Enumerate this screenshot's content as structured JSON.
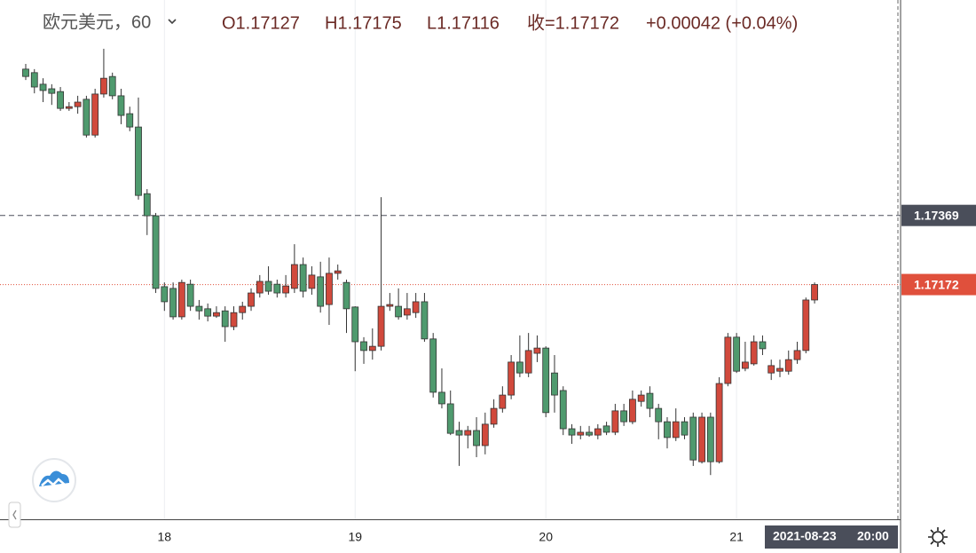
{
  "chart_data": {
    "type": "candlestick",
    "header": {
      "symbol": "欧元美元，60",
      "open": "O1.17127",
      "high": "H1.17175",
      "low": "L1.17116",
      "close": "收=1.17172",
      "change": "+0.00042 (+0.04%)"
    },
    "up_color": "#d1493c",
    "down_color": "#4f9a6e",
    "ylim": [
      1.16503,
      1.17983
    ],
    "grid": true,
    "crosshair_label": "2021-08-23",
    "crosshair_time": "20:00",
    "price_lines": [
      {
        "value": 1.17369,
        "color": "#4a4e5a",
        "style": "dashed"
      },
      {
        "value": 1.17172,
        "color": "#e0503c",
        "style": "dotted"
      }
    ],
    "categories": [
      null,
      null,
      null,
      null,
      null,
      null,
      null,
      null,
      null,
      null,
      null,
      null,
      null,
      null,
      null,
      null,
      "18",
      null,
      null,
      null,
      null,
      null,
      null,
      null,
      null,
      null,
      null,
      null,
      null,
      null,
      null,
      null,
      null,
      null,
      null,
      null,
      null,
      null,
      "19",
      null,
      null,
      null,
      null,
      null,
      null,
      null,
      null,
      null,
      null,
      null,
      null,
      null,
      null,
      null,
      null,
      null,
      null,
      null,
      null,
      null,
      "20",
      null,
      null,
      null,
      null,
      null,
      null,
      null,
      null,
      null,
      null,
      null,
      null,
      null,
      null,
      null,
      null,
      null,
      null,
      null,
      null,
      null,
      "21",
      null,
      null,
      null,
      null,
      null,
      null,
      null,
      null,
      null
    ],
    "ohlc": [
      [
        1.17786,
        1.17801,
        1.17755,
        1.17765
      ],
      [
        1.17776,
        1.17786,
        1.17717,
        1.17735
      ],
      [
        1.17743,
        1.1776,
        1.17692,
        1.17725
      ],
      [
        1.1773,
        1.17743,
        1.17684,
        1.17717
      ],
      [
        1.17722,
        1.17735,
        1.17667,
        1.17674
      ],
      [
        1.17674,
        1.17692,
        1.17667,
        1.17679
      ],
      [
        1.17679,
        1.1771,
        1.17659,
        1.17692
      ],
      [
        1.177,
        1.1771,
        1.17591,
        1.17598
      ],
      [
        1.17598,
        1.1773,
        1.17591,
        1.17715
      ],
      [
        1.17715,
        1.17844,
        1.17705,
        1.1776
      ],
      [
        1.17765,
        1.17776,
        1.177,
        1.1771
      ],
      [
        1.1771,
        1.1773,
        1.17629,
        1.17654
      ],
      [
        1.17659,
        1.17679,
        1.17609,
        1.17621
      ],
      [
        1.17621,
        1.17705,
        1.17414,
        1.17426
      ],
      [
        1.17431,
        1.17444,
        1.17313,
        1.17368
      ],
      [
        1.17368,
        1.17376,
        1.17148,
        1.17161
      ],
      [
        1.17166,
        1.17178,
        1.17097,
        1.17123
      ],
      [
        1.17161,
        1.17178,
        1.17072,
        1.1708
      ],
      [
        1.1708,
        1.17186,
        1.17072,
        1.17178
      ],
      [
        1.17173,
        1.17186,
        1.17097,
        1.1711
      ],
      [
        1.1711,
        1.17128,
        1.17072,
        1.17097
      ],
      [
        1.17103,
        1.17118,
        1.17067,
        1.17082
      ],
      [
        1.17082,
        1.1711,
        1.17077,
        1.17092
      ],
      [
        1.17097,
        1.1711,
        1.17009,
        1.17052
      ],
      [
        1.17052,
        1.1711,
        1.17042,
        1.17092
      ],
      [
        1.17092,
        1.17123,
        1.17072,
        1.1711
      ],
      [
        1.1711,
        1.17161,
        1.17097,
        1.17148
      ],
      [
        1.17148,
        1.17199,
        1.17135,
        1.17181
      ],
      [
        1.17181,
        1.17224,
        1.17143,
        1.17153
      ],
      [
        1.17173,
        1.17186,
        1.17135,
        1.17148
      ],
      [
        1.17148,
        1.17199,
        1.17135,
        1.17168
      ],
      [
        1.17161,
        1.17287,
        1.17148,
        1.17229
      ],
      [
        1.17229,
        1.17249,
        1.17135,
        1.17153
      ],
      [
        1.17161,
        1.17224,
        1.17143,
        1.17199
      ],
      [
        1.17194,
        1.17237,
        1.17092,
        1.1711
      ],
      [
        1.17115,
        1.17249,
        1.17057,
        1.17204
      ],
      [
        1.17204,
        1.17229,
        1.17186,
        1.17211
      ],
      [
        1.17178,
        1.17186,
        1.17034,
        1.17103
      ],
      [
        1.17108,
        1.1711,
        1.16925,
        1.17009
      ],
      [
        1.17009,
        1.17022,
        1.16946,
        1.16984
      ],
      [
        1.16984,
        1.17047,
        1.16958,
        1.16996
      ],
      [
        1.16996,
        1.17421,
        1.16984,
        1.1711
      ],
      [
        1.1711,
        1.17148,
        1.17097,
        1.17115
      ],
      [
        1.1711,
        1.17161,
        1.17072,
        1.1708
      ],
      [
        1.17085,
        1.17148,
        1.17072,
        1.17103
      ],
      [
        1.17092,
        1.17148,
        1.17077,
        1.17123
      ],
      [
        1.17123,
        1.17148,
        1.17009,
        1.17017
      ],
      [
        1.17017,
        1.17034,
        1.1685,
        1.16865
      ],
      [
        1.16865,
        1.16933,
        1.16819,
        1.16832
      ],
      [
        1.16832,
        1.1687,
        1.16743,
        1.16748
      ],
      [
        1.16756,
        1.16781,
        1.16655,
        1.16743
      ],
      [
        1.16743,
        1.16769,
        1.16705,
        1.16756
      ],
      [
        1.16756,
        1.16794,
        1.1668,
        1.16713
      ],
      [
        1.16713,
        1.16807,
        1.16688,
        1.16774
      ],
      [
        1.16774,
        1.16845,
        1.16764,
        1.16819
      ],
      [
        1.16819,
        1.16882,
        1.16807,
        1.16857
      ],
      [
        1.16857,
        1.16971,
        1.16845,
        1.16951
      ],
      [
        1.16951,
        1.17027,
        1.16908,
        1.1692
      ],
      [
        1.1692,
        1.17034,
        1.16908,
        1.16984
      ],
      [
        1.16976,
        1.17027,
        1.16951,
        1.16991
      ],
      [
        1.16991,
        1.16996,
        1.16794,
        1.16807
      ],
      [
        1.1692,
        1.16971,
        1.16807,
        1.16857
      ],
      [
        1.1687,
        1.16882,
        1.16743,
        1.16761
      ],
      [
        1.16761,
        1.16774,
        1.16718,
        1.16743
      ],
      [
        1.16743,
        1.16769,
        1.16731,
        1.16751
      ],
      [
        1.16751,
        1.16769,
        1.16738,
        1.16743
      ],
      [
        1.16743,
        1.16774,
        1.16731,
        1.16761
      ],
      [
        1.16769,
        1.16781,
        1.16743,
        1.16751
      ],
      [
        1.16751,
        1.16832,
        1.16743,
        1.16812
      ],
      [
        1.16812,
        1.16832,
        1.16769,
        1.16781
      ],
      [
        1.16781,
        1.1687,
        1.16774,
        1.16845
      ],
      [
        1.16839,
        1.1687,
        1.16824,
        1.16857
      ],
      [
        1.16862,
        1.16882,
        1.16794,
        1.16819
      ],
      [
        1.16819,
        1.16832,
        1.16731,
        1.16781
      ],
      [
        1.16781,
        1.16794,
        1.16705,
        1.16736
      ],
      [
        1.16736,
        1.16819,
        1.16726,
        1.16781
      ],
      [
        1.16781,
        1.16794,
        1.16731,
        1.16743
      ],
      [
        1.16794,
        1.16807,
        1.16655,
        1.16672
      ],
      [
        1.16667,
        1.16807,
        1.16662,
        1.16794
      ],
      [
        1.16794,
        1.16807,
        1.16629,
        1.16667
      ],
      [
        1.16667,
        1.16908,
        1.16662,
        1.1689
      ],
      [
        1.1689,
        1.17034,
        1.16882,
        1.17022
      ],
      [
        1.17022,
        1.17034,
        1.1692,
        1.16925
      ],
      [
        1.16933,
        1.17009,
        1.16925,
        1.16951
      ],
      [
        1.16946,
        1.17027,
        1.16941,
        1.17009
      ],
      [
        1.17009,
        1.17027,
        1.16971,
        1.16989
      ],
      [
        1.1692,
        1.16958,
        1.169,
        1.16941
      ],
      [
        1.16925,
        1.16958,
        1.16908,
        1.16933
      ],
      [
        1.16925,
        1.16984,
        1.16915,
        1.16958
      ],
      [
        1.16958,
        1.17009,
        1.16946,
        1.16984
      ],
      [
        1.16984,
        1.17135,
        1.16976,
        1.17128
      ],
      [
        1.17128,
        1.17178,
        1.17118,
        1.17172
      ]
    ]
  }
}
